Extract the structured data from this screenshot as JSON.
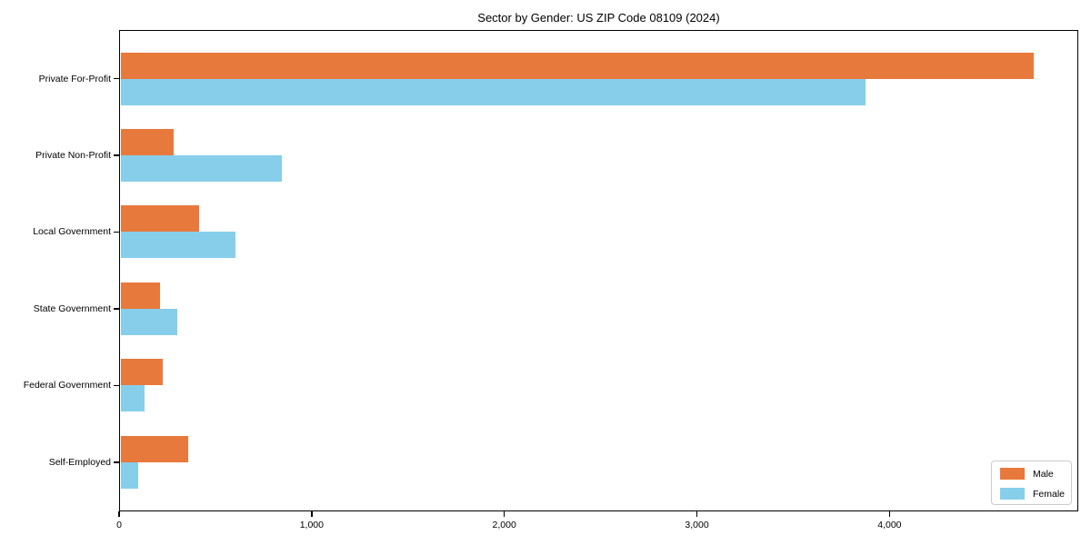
{
  "chart_data": {
    "type": "bar",
    "orientation": "horizontal",
    "title": "Sector by Gender: US ZIP Code 08109 (2024)",
    "categories": [
      "Private For-Profit",
      "Private Non-Profit",
      "Local Government",
      "State Government",
      "Federal Government",
      "Self-Employed"
    ],
    "series": [
      {
        "name": "Male",
        "color": "#E8793C",
        "values": [
          4743,
          276,
          406,
          203,
          220,
          351
        ]
      },
      {
        "name": "Female",
        "color": "#87CEEB",
        "values": [
          3866,
          839,
          598,
          294,
          123,
          90
        ]
      }
    ],
    "xlabel": "",
    "ylabel": "",
    "xlim": [
      0,
      4980
    ],
    "xticks": [
      {
        "value": 0,
        "label": "0"
      },
      {
        "value": 1000,
        "label": "1,000"
      },
      {
        "value": 2000,
        "label": "2,000"
      },
      {
        "value": 3000,
        "label": "3,000"
      },
      {
        "value": 4000,
        "label": "4,000"
      }
    ],
    "grid": false,
    "legend_position": "lower right"
  }
}
